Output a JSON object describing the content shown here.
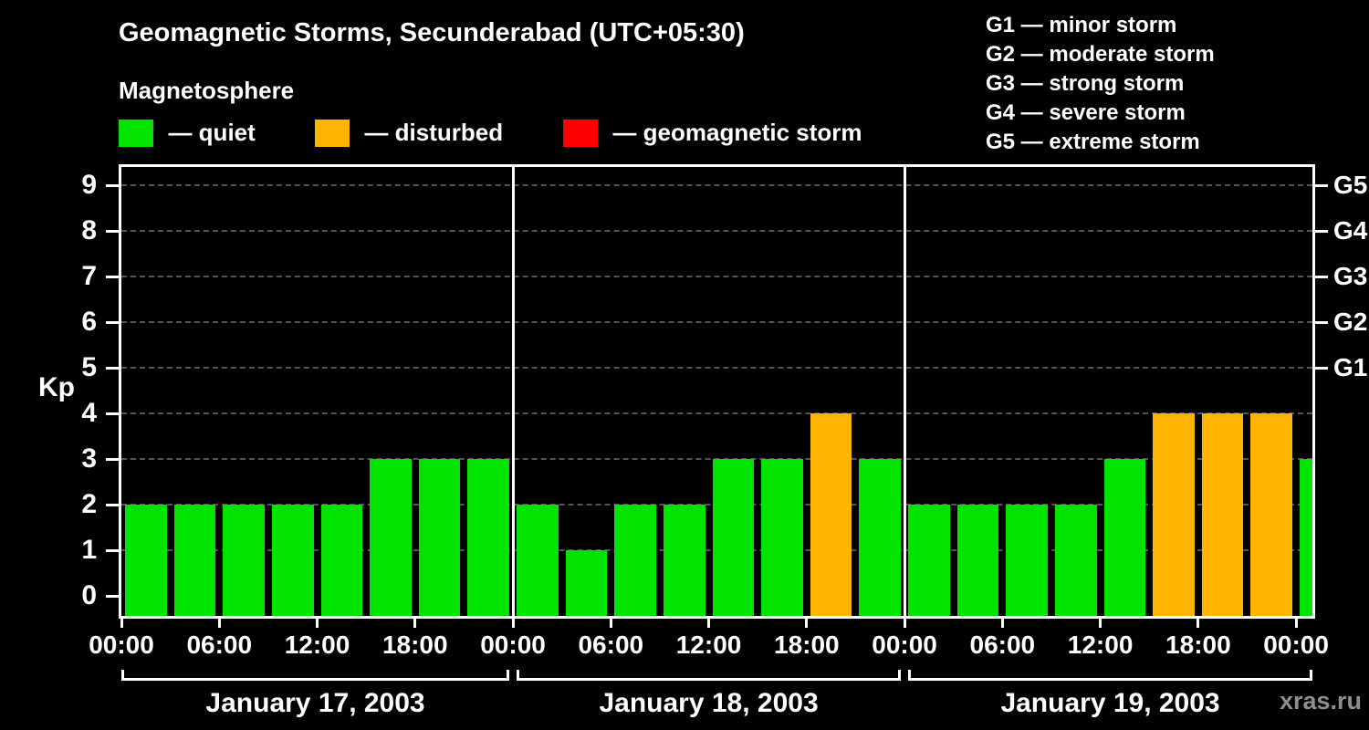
{
  "chart_data": {
    "type": "bar",
    "title": "Geomagnetic Storms, Secunderabad (UTC+05:30)",
    "subtitle": "Magnetosphere",
    "ylabel": "Kp",
    "ylim": [
      0,
      9.5
    ],
    "yticks": [
      0,
      1,
      2,
      3,
      4,
      5,
      6,
      7,
      8,
      9
    ],
    "grid": "dashed horizontal line at each Kp level",
    "legend": {
      "items": [
        {
          "key": "quiet",
          "label": "— quiet",
          "color": "#00e400"
        },
        {
          "key": "disturbed",
          "label": "— disturbed",
          "color": "#ffb400"
        },
        {
          "key": "storm",
          "label": "— geomagnetic storm",
          "color": "#ff0000"
        }
      ]
    },
    "g_scale_legend": [
      "G1 — minor storm",
      "G2 — moderate storm",
      "G3 — strong storm",
      "G4 — severe storm",
      "G5 — extreme storm"
    ],
    "right_axis_labels": [
      {
        "label": "G1",
        "kp": 5
      },
      {
        "label": "G2",
        "kp": 6
      },
      {
        "label": "G3",
        "kp": 7
      },
      {
        "label": "G4",
        "kp": 8
      },
      {
        "label": "G5",
        "kp": 9
      }
    ],
    "x_tick_hours": [
      0,
      6,
      12,
      18,
      24,
      30,
      36,
      42,
      48,
      54,
      60,
      66,
      72
    ],
    "x_tick_labels": [
      "00:00",
      "06:00",
      "12:00",
      "18:00",
      "00:00",
      "06:00",
      "12:00",
      "18:00",
      "00:00",
      "06:00",
      "12:00",
      "18:00",
      "00:00"
    ],
    "hours_span": 73,
    "bar_interval_hours": 3,
    "days": [
      {
        "label": "January 17, 2003",
        "start_hour": 0,
        "values": [
          2,
          2,
          2,
          2,
          2,
          3,
          3,
          3
        ]
      },
      {
        "label": "January 18, 2003",
        "start_hour": 24,
        "values": [
          2,
          1,
          2,
          2,
          3,
          3,
          4,
          3
        ]
      },
      {
        "label": "January 19, 2003",
        "start_hour": 48,
        "values": [
          2,
          2,
          2,
          2,
          3,
          4,
          4,
          4
        ]
      }
    ],
    "partial_next_bar": {
      "start_hour": 72,
      "value": 3
    },
    "colors": {
      "quiet": "#00e400",
      "disturbed": "#ffb400",
      "storm": "#ff0000",
      "grid": "#555555",
      "axis": "#ffffff",
      "background": "#000000"
    }
  },
  "watermark": "xras.ru"
}
